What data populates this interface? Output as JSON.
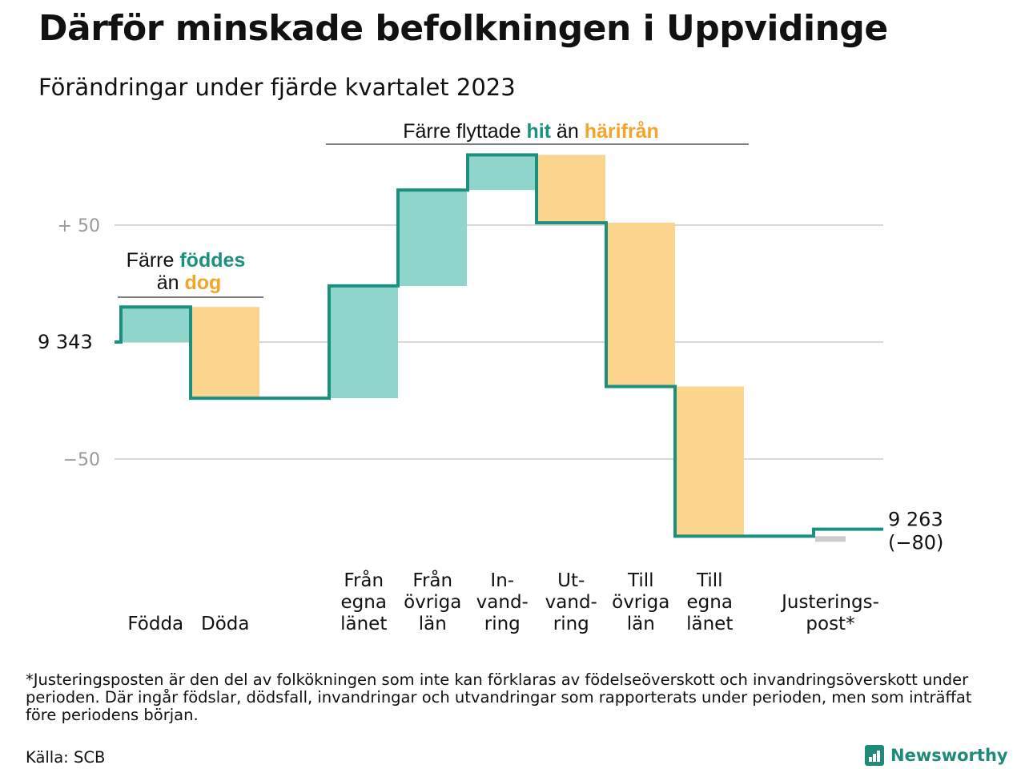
{
  "title": "Därför minskade befolkningen i Uppvidinge",
  "subtitle": "Förändringar under fjärde kvartalet 2023",
  "footnote": "*Justeringsposten är den del av folkökningen som inte kan förklaras av födelseöverskott och invandringsöverskott under perioden. Där ingår födslar, dödsfall, invandringar och utvandringar som rapporterats under perioden, men som inträffat före periodens början.",
  "source": "Källa: SCB",
  "brand": "Newsworthy",
  "chart_data": {
    "type": "bar",
    "subtype": "waterfall",
    "start_value": 9343,
    "start_label": "9 343",
    "end_label": "9 263",
    "change_label": "(−80)",
    "y_ticks": [
      {
        "value": 50,
        "label": "+ 50"
      },
      {
        "value": -50,
        "label": "−50"
      }
    ],
    "ylim": [
      -85,
      80
    ],
    "grid": true,
    "steps": [
      {
        "category": "Födda",
        "label_lines": [
          "Födda"
        ],
        "value": 15,
        "kind": "in"
      },
      {
        "category": "Döda",
        "label_lines": [
          "Döda"
        ],
        "value": -39,
        "kind": "out"
      },
      {
        "category": "Från egna länet",
        "label_lines": [
          "Från",
          "egna",
          "länet"
        ],
        "value": 48,
        "kind": "in"
      },
      {
        "category": "Från övriga län",
        "label_lines": [
          "Från",
          "övriga",
          "län"
        ],
        "value": 41,
        "kind": "in"
      },
      {
        "category": "Invandring",
        "label_lines": [
          "In-",
          "vand-",
          "ring"
        ],
        "value": 15,
        "kind": "in"
      },
      {
        "category": "Utvandring",
        "label_lines": [
          "Ut-",
          "vand-",
          "ring"
        ],
        "value": -29,
        "kind": "out"
      },
      {
        "category": "Till övriga län",
        "label_lines": [
          "Till",
          "övriga",
          "län"
        ],
        "value": -70,
        "kind": "out"
      },
      {
        "category": "Till egna länet",
        "label_lines": [
          "Till",
          "egna",
          "länet"
        ],
        "value": -64,
        "kind": "out"
      },
      {
        "category": "Justeringspost*",
        "label_lines": [
          "Justerings-",
          "post*"
        ],
        "value": 3,
        "kind": "adjust"
      }
    ],
    "annotations": [
      {
        "id": "births",
        "line1_pre": "Färre ",
        "line1_hl": "föddes",
        "line2_pre": "än ",
        "line2_hl": "dog"
      },
      {
        "id": "moves",
        "pre": "Färre flyttade ",
        "hl1": "hit",
        "mid": " än ",
        "hl2": "härifrån"
      }
    ],
    "colors": {
      "in_fill": "#8fd5cb",
      "out_fill": "#fbd58d",
      "adjust_fill": "#cccccc",
      "line": "#1a9080",
      "accent_in": "#1a9080",
      "accent_out": "#f2a52a",
      "grid": "#d9d9d9"
    }
  }
}
